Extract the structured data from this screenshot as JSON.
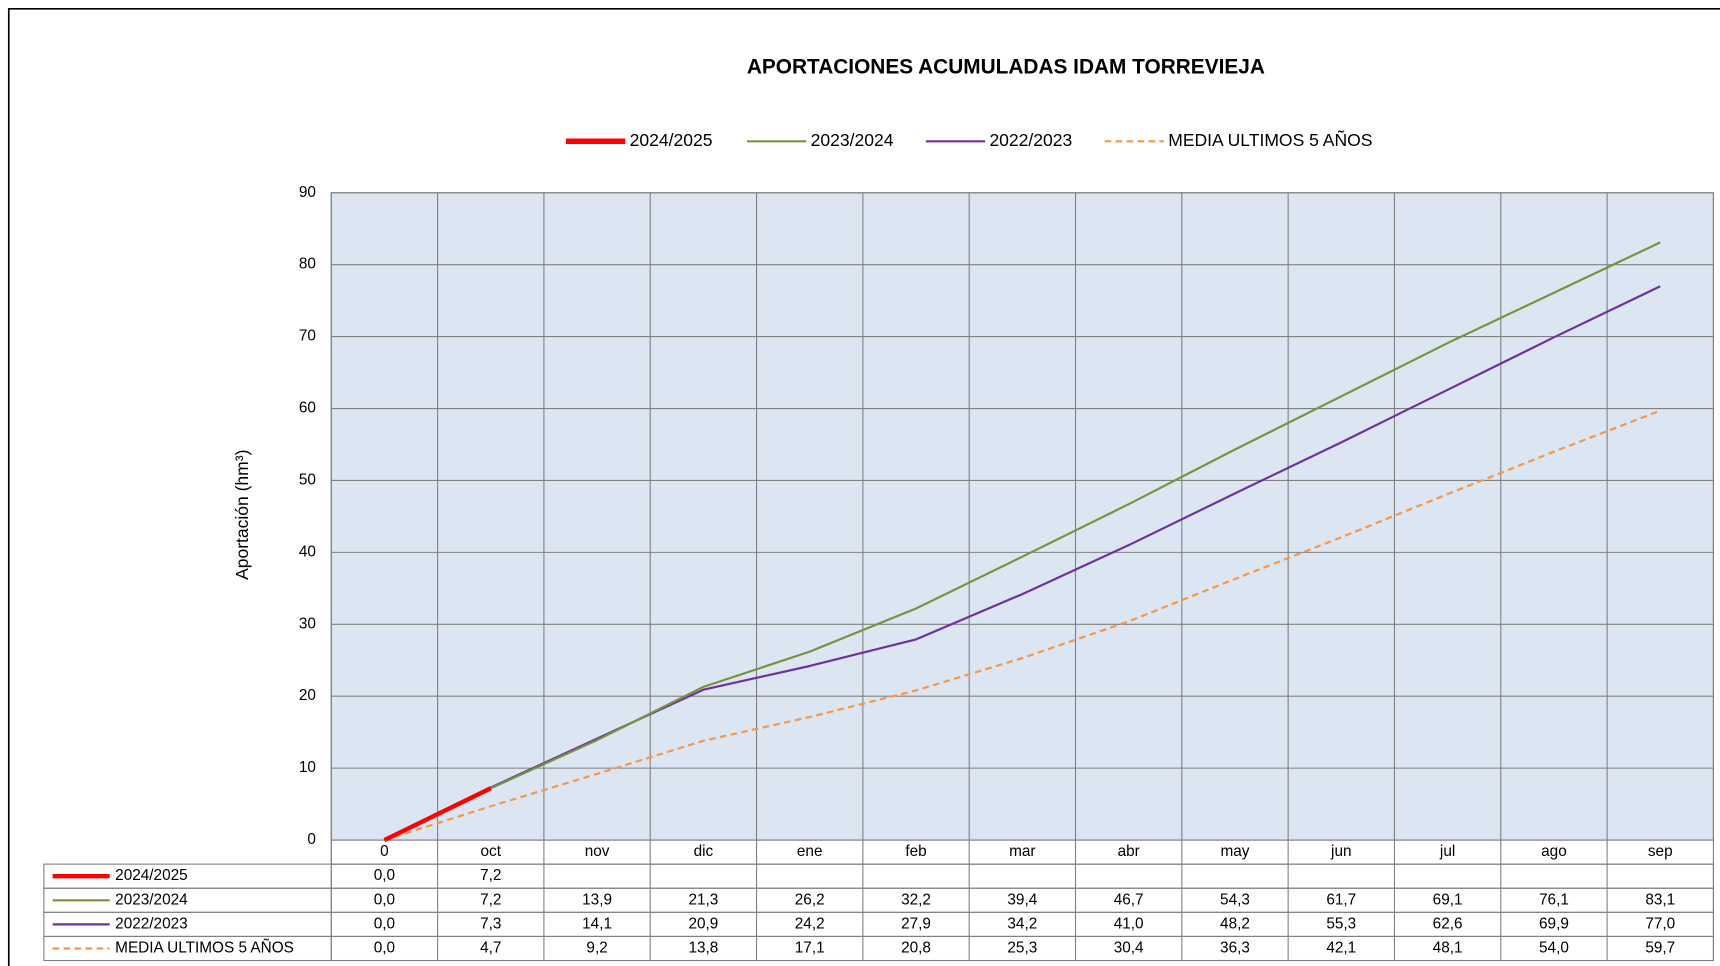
{
  "chart_data": {
    "type": "line",
    "title": "APORTACIONES ACUMULADAS IDAM TORREVIEJA",
    "y_label": "Aportación (hm³)",
    "categories": [
      "0",
      "oct",
      "nov",
      "dic",
      "ene",
      "feb",
      "mar",
      "abr",
      "may",
      "jun",
      "jul",
      "ago",
      "sep"
    ],
    "ylim": [
      0,
      90
    ],
    "yticks": [
      0,
      10,
      20,
      30,
      40,
      50,
      60,
      70,
      80,
      90
    ],
    "grid": true,
    "legend": "top",
    "series": [
      {
        "name": "2024/2025",
        "color": "#ff0000",
        "values": [
          0.0,
          7.2,
          null,
          null,
          null,
          null,
          null,
          null,
          null,
          null,
          null,
          null,
          null
        ],
        "value_labels": [
          "0,0",
          "7,2",
          null,
          null,
          null,
          null,
          null,
          null,
          null,
          null,
          null,
          null,
          null
        ]
      },
      {
        "name": "2023/2024",
        "color": "#77933c",
        "values": [
          0.0,
          7.2,
          13.9,
          21.3,
          26.2,
          32.2,
          39.4,
          46.7,
          54.3,
          61.7,
          69.1,
          76.1,
          83.1
        ],
        "value_labels": [
          "0,0",
          "7,2",
          "13,9",
          "21,3",
          "26,2",
          "32,2",
          "39,4",
          "46,7",
          "54,3",
          "61,7",
          "69,1",
          "76,1",
          "83,1"
        ]
      },
      {
        "name": "2022/2023",
        "color": "#7030a0",
        "values": [
          0.0,
          7.3,
          14.1,
          20.9,
          24.2,
          27.9,
          34.2,
          41.0,
          48.2,
          55.3,
          62.6,
          69.9,
          77.0
        ],
        "value_labels": [
          "0,0",
          "7,3",
          "14,1",
          "20,9",
          "24,2",
          "27,9",
          "34,2",
          "41,0",
          "48,2",
          "55,3",
          "62,6",
          "69,9",
          "77,0"
        ]
      },
      {
        "name": "MEDIA ULTIMOS 5 AÑOS",
        "color": "#f79646",
        "dashed": true,
        "values": [
          0.0,
          4.7,
          9.2,
          13.8,
          17.1,
          20.8,
          25.3,
          30.4,
          36.3,
          42.1,
          48.1,
          54.0,
          59.7
        ],
        "value_labels": [
          "0,0",
          "4,7",
          "9,2",
          "13,8",
          "17,1",
          "20,8",
          "25,3",
          "30,4",
          "36,3",
          "42,1",
          "48,1",
          "54,0",
          "59,7"
        ]
      }
    ]
  }
}
